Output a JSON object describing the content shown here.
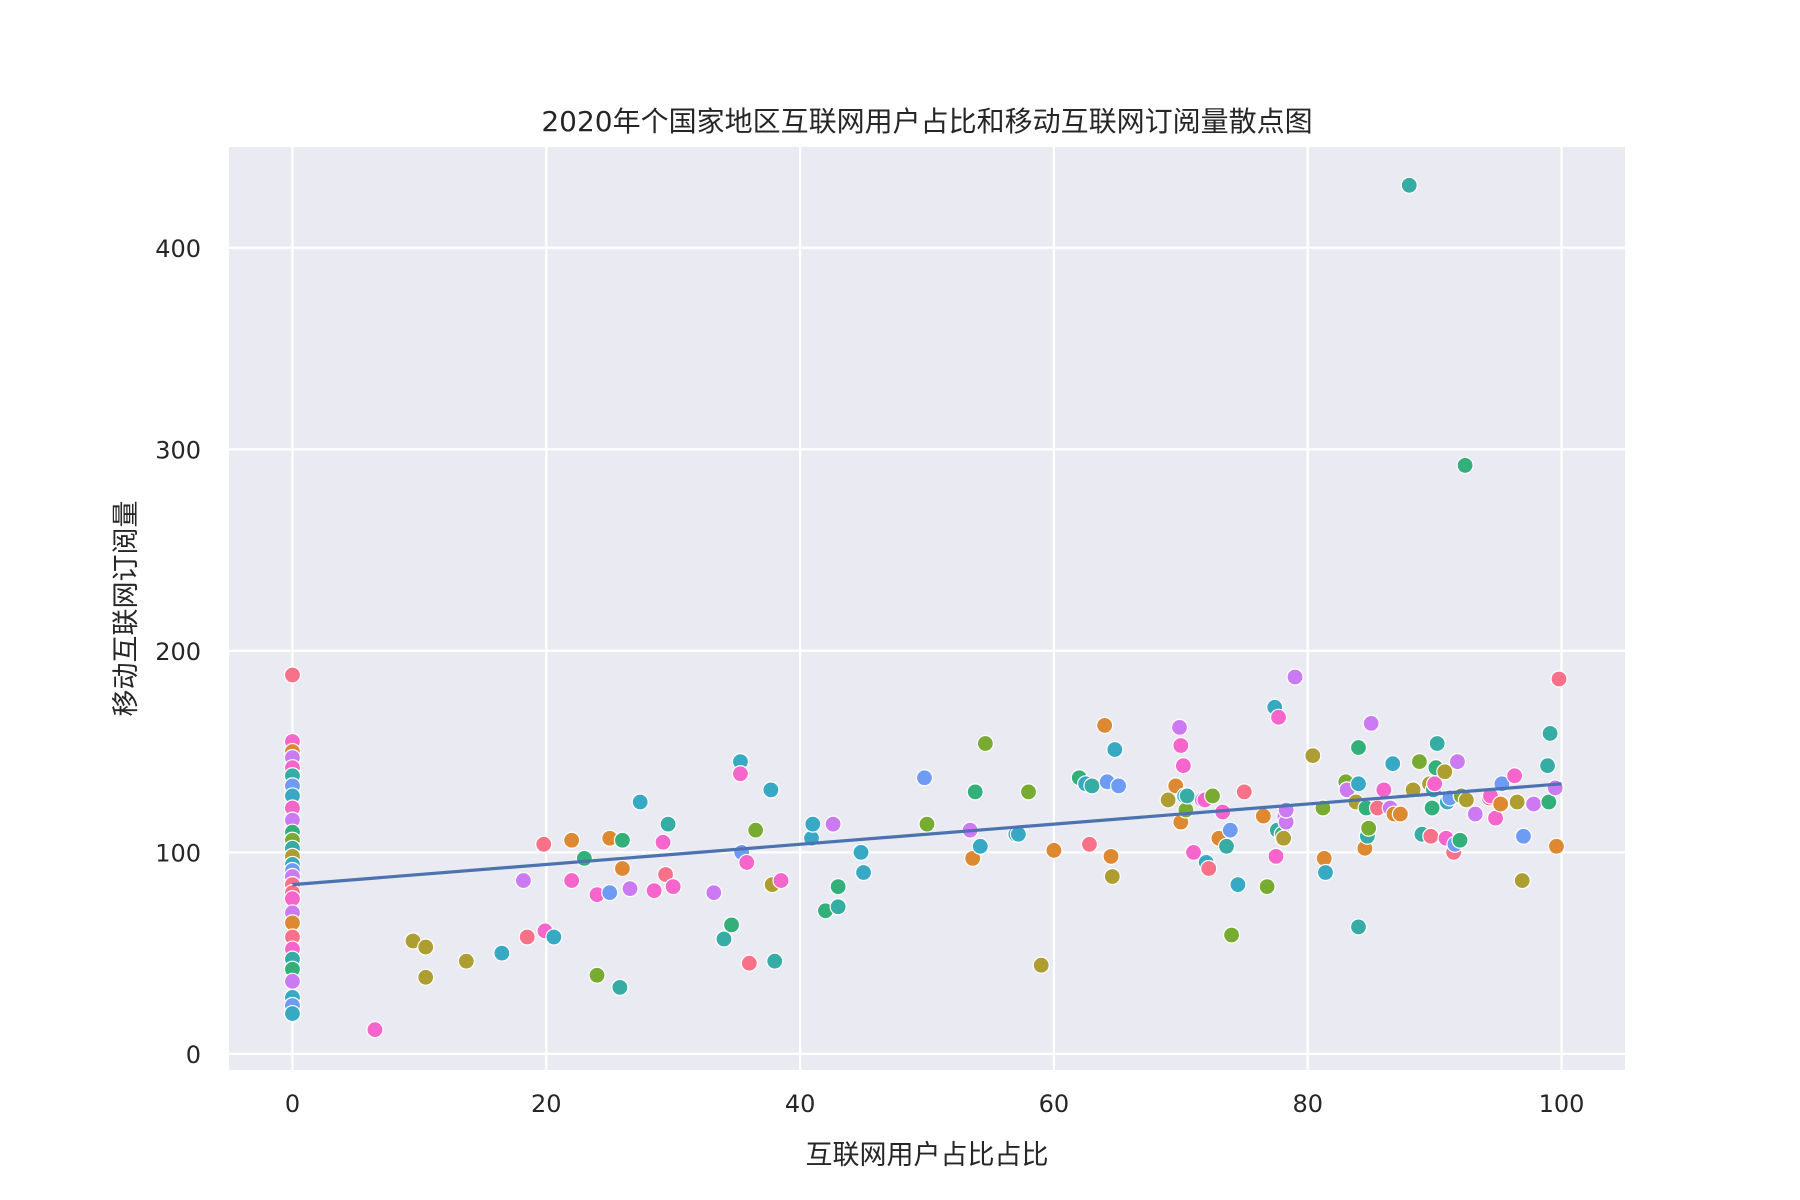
{
  "chart_data": {
    "type": "scatter",
    "title": "2020年个国家地区互联网用户占比和移动互联网订阅量散点图",
    "xlabel": "互联网用户占比占比",
    "ylabel": "移动互联网订阅量",
    "xlim": [
      -5,
      105
    ],
    "ylim": [
      -8,
      450
    ],
    "xticks": [
      0,
      20,
      40,
      60,
      80,
      100
    ],
    "yticks": [
      0,
      100,
      200,
      300,
      400
    ],
    "grid": true,
    "background": "#eaeaf2",
    "legend": "none",
    "regression_line": {
      "x": [
        0,
        100
      ],
      "y": [
        84,
        134
      ],
      "color": "#4c72b0"
    },
    "palette": [
      "#f77189",
      "#dc8932",
      "#ae9d31",
      "#77ab31",
      "#33b07a",
      "#36ada4",
      "#38a9c5",
      "#6e9bf4",
      "#cc7af4",
      "#f565cc"
    ],
    "points": [
      [
        0,
        188,
        0
      ],
      [
        0,
        155,
        9
      ],
      [
        0,
        150,
        1
      ],
      [
        0,
        147,
        8
      ],
      [
        0,
        142,
        9
      ],
      [
        0,
        138,
        5
      ],
      [
        0,
        133,
        7
      ],
      [
        0,
        128,
        6
      ],
      [
        0,
        122,
        9
      ],
      [
        0,
        116,
        8
      ],
      [
        0,
        110,
        4
      ],
      [
        0,
        106,
        3
      ],
      [
        0,
        102,
        5
      ],
      [
        0,
        98,
        2
      ],
      [
        0,
        94,
        6
      ],
      [
        0,
        91,
        7
      ],
      [
        0,
        88,
        8
      ],
      [
        0,
        84,
        0
      ],
      [
        0,
        80,
        0
      ],
      [
        0,
        77,
        9
      ],
      [
        0,
        70,
        8
      ],
      [
        0,
        65,
        1
      ],
      [
        0,
        58,
        0
      ],
      [
        0,
        52,
        9
      ],
      [
        0,
        47,
        5
      ],
      [
        0,
        42,
        4
      ],
      [
        0,
        36,
        8
      ],
      [
        0,
        28,
        6
      ],
      [
        0,
        24,
        7
      ],
      [
        0,
        20,
        6
      ],
      [
        6.5,
        12,
        9
      ],
      [
        9.5,
        56,
        2
      ],
      [
        10.5,
        53,
        2
      ],
      [
        10.5,
        38,
        2
      ],
      [
        13.7,
        46,
        2
      ],
      [
        16.5,
        50,
        6
      ],
      [
        18.2,
        86,
        8
      ],
      [
        18.5,
        58,
        0
      ],
      [
        19.8,
        104,
        0
      ],
      [
        19.9,
        61,
        9
      ],
      [
        20.6,
        58,
        6
      ],
      [
        22,
        106,
        1
      ],
      [
        22,
        86,
        9
      ],
      [
        23,
        97,
        4
      ],
      [
        24,
        39,
        3
      ],
      [
        24,
        79,
        9
      ],
      [
        25,
        107,
        1
      ],
      [
        25,
        80,
        7
      ],
      [
        25.8,
        33,
        5
      ],
      [
        26,
        106,
        4
      ],
      [
        26,
        92,
        1
      ],
      [
        26.6,
        82,
        8
      ],
      [
        27.4,
        125,
        6
      ],
      [
        28.5,
        81,
        9
      ],
      [
        29.2,
        105,
        9
      ],
      [
        29.4,
        89,
        0
      ],
      [
        29.6,
        114,
        5
      ],
      [
        30,
        83,
        9
      ],
      [
        33.2,
        80,
        8
      ],
      [
        34,
        57,
        5
      ],
      [
        34.6,
        64,
        4
      ],
      [
        35.3,
        145,
        6
      ],
      [
        35.3,
        139,
        9
      ],
      [
        35.4,
        100,
        7
      ],
      [
        35.8,
        95,
        9
      ],
      [
        36,
        45,
        0
      ],
      [
        36.5,
        111,
        3
      ],
      [
        37.7,
        131,
        6
      ],
      [
        37.8,
        84,
        2
      ],
      [
        38,
        46,
        5
      ],
      [
        38.5,
        86,
        9
      ],
      [
        40.9,
        107,
        6
      ],
      [
        41,
        114,
        6
      ],
      [
        42,
        71,
        4
      ],
      [
        42.6,
        114,
        8
      ],
      [
        43,
        73,
        5
      ],
      [
        43,
        83,
        4
      ],
      [
        44.8,
        100,
        6
      ],
      [
        45,
        90,
        6
      ],
      [
        49.8,
        137,
        7
      ],
      [
        50,
        114,
        3
      ],
      [
        53.4,
        111,
        8
      ],
      [
        53.6,
        97,
        1
      ],
      [
        53.8,
        130,
        4
      ],
      [
        54.2,
        103,
        6
      ],
      [
        54.6,
        154,
        3
      ],
      [
        57,
        109,
        5
      ],
      [
        57.2,
        109,
        6
      ],
      [
        58,
        130,
        3
      ],
      [
        59,
        44,
        2
      ],
      [
        60,
        101,
        1
      ],
      [
        62,
        137,
        4
      ],
      [
        62.5,
        134,
        6
      ],
      [
        62.8,
        104,
        0
      ],
      [
        63,
        133,
        5
      ],
      [
        64,
        163,
        1
      ],
      [
        64.2,
        135,
        7
      ],
      [
        64.5,
        98,
        1
      ],
      [
        64.6,
        88,
        2
      ],
      [
        64.8,
        151,
        6
      ],
      [
        65.1,
        133,
        7
      ],
      [
        69,
        126,
        2
      ],
      [
        69.6,
        133,
        1
      ],
      [
        69.9,
        162,
        8
      ],
      [
        70,
        153,
        9
      ],
      [
        70,
        115,
        1
      ],
      [
        70.2,
        143,
        9
      ],
      [
        70.3,
        128,
        6
      ],
      [
        70.4,
        121,
        3
      ],
      [
        70.5,
        128,
        5
      ],
      [
        71,
        100,
        9
      ],
      [
        71.7,
        126,
        8
      ],
      [
        71.9,
        126,
        9
      ],
      [
        72,
        95,
        6
      ],
      [
        72.2,
        92,
        0
      ],
      [
        72.5,
        128,
        3
      ],
      [
        73,
        107,
        1
      ],
      [
        73.3,
        120,
        9
      ],
      [
        73.6,
        103,
        5
      ],
      [
        73.9,
        111,
        7
      ],
      [
        74,
        59,
        3
      ],
      [
        74.5,
        84,
        6
      ],
      [
        75,
        130,
        0
      ],
      [
        76.5,
        118,
        1
      ],
      [
        76.8,
        83,
        3
      ],
      [
        77.4,
        172,
        6
      ],
      [
        77.5,
        98,
        9
      ],
      [
        77.6,
        111,
        5
      ],
      [
        77.7,
        167,
        9
      ],
      [
        78,
        109,
        4
      ],
      [
        78.1,
        107,
        2
      ],
      [
        78.2,
        118,
        8
      ],
      [
        78.3,
        115,
        8
      ],
      [
        78.3,
        121,
        8
      ],
      [
        79,
        187,
        8
      ],
      [
        80.4,
        148,
        2
      ],
      [
        81.2,
        122,
        3
      ],
      [
        81.3,
        97,
        1
      ],
      [
        81.4,
        90,
        6
      ],
      [
        83,
        135,
        3
      ],
      [
        83.1,
        131,
        8
      ],
      [
        83.8,
        125,
        2
      ],
      [
        84,
        152,
        4
      ],
      [
        84,
        134,
        6
      ],
      [
        84,
        63,
        5
      ],
      [
        84.5,
        102,
        1
      ],
      [
        84.6,
        122,
        4
      ],
      [
        84.7,
        108,
        5
      ],
      [
        84.8,
        112,
        3
      ],
      [
        85,
        164,
        8
      ],
      [
        85.5,
        122,
        0
      ],
      [
        86,
        131,
        9
      ],
      [
        86.5,
        122,
        8
      ],
      [
        86.7,
        144,
        6
      ],
      [
        86.8,
        119,
        1
      ],
      [
        87.3,
        119,
        1
      ],
      [
        88,
        431,
        5
      ],
      [
        88.3,
        131,
        2
      ],
      [
        88.8,
        145,
        3
      ],
      [
        89,
        109,
        5
      ],
      [
        89.6,
        134,
        2
      ],
      [
        89.7,
        108,
        0
      ],
      [
        89.8,
        122,
        4
      ],
      [
        89.9,
        131,
        5
      ],
      [
        90,
        134,
        9
      ],
      [
        90.1,
        142,
        4
      ],
      [
        90.2,
        154,
        5
      ],
      [
        90.8,
        140,
        2
      ],
      [
        90.9,
        107,
        9
      ],
      [
        91,
        125,
        6
      ],
      [
        91.2,
        127,
        7
      ],
      [
        91.5,
        100,
        0
      ],
      [
        91.6,
        104,
        7
      ],
      [
        91.8,
        145,
        8
      ],
      [
        92,
        106,
        4
      ],
      [
        92.1,
        128,
        3
      ],
      [
        92.4,
        292,
        4
      ],
      [
        92.5,
        126,
        2
      ],
      [
        93.2,
        119,
        8
      ],
      [
        94.3,
        127,
        0
      ],
      [
        94.4,
        128,
        9
      ],
      [
        94.8,
        117,
        9
      ],
      [
        95.2,
        124,
        1
      ],
      [
        95.3,
        134,
        7
      ],
      [
        96.3,
        138,
        9
      ],
      [
        96.5,
        125,
        2
      ],
      [
        96.9,
        86,
        2
      ],
      [
        97,
        108,
        7
      ],
      [
        97.8,
        124,
        8
      ],
      [
        98.9,
        143,
        5
      ],
      [
        99,
        125,
        4
      ],
      [
        99.1,
        159,
        5
      ],
      [
        99.5,
        132,
        8
      ],
      [
        99.6,
        103,
        1
      ],
      [
        99.8,
        186,
        0
      ]
    ]
  }
}
